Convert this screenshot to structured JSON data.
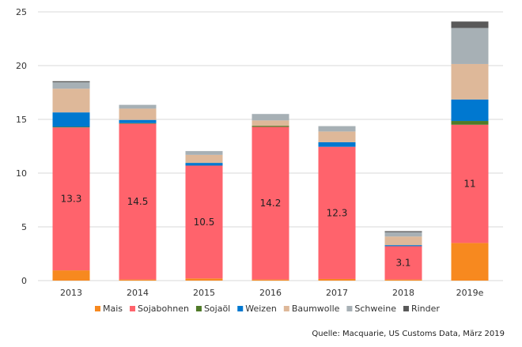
{
  "chart_data": {
    "type": "bar",
    "stacked": true,
    "title": "",
    "xlabel": "",
    "ylabel": "",
    "ylim": [
      0,
      25
    ],
    "yticks": [
      0,
      5,
      10,
      15,
      20,
      25
    ],
    "grid": true,
    "legend_position": "bottom",
    "categories": [
      "2013",
      "2014",
      "2015",
      "2016",
      "2017",
      "2018",
      "2019e"
    ],
    "series": [
      {
        "name": "Mais",
        "color": "#F7891F",
        "values": [
          0.95,
          0.1,
          0.2,
          0.1,
          0.15,
          0.1,
          3.5
        ]
      },
      {
        "name": "Sojabohnen",
        "color": "#FF636C",
        "values": [
          13.3,
          14.5,
          10.5,
          14.2,
          12.3,
          3.1,
          11
        ],
        "labels": [
          "13.3",
          "14.5",
          "10.5",
          "14.2",
          "12.3",
          "3.1",
          "11"
        ]
      },
      {
        "name": "Sojaöl",
        "color": "#4F7A28",
        "values": [
          0.05,
          0.05,
          0,
          0.1,
          0,
          0,
          0.35
        ]
      },
      {
        "name": "Weizen",
        "color": "#0078D0",
        "values": [
          1.35,
          0.3,
          0.25,
          0,
          0.42,
          0.1,
          2.0
        ]
      },
      {
        "name": "Baumwolle",
        "color": "#DEB899",
        "values": [
          2.2,
          1.05,
          0.75,
          0.5,
          1.0,
          0.8,
          3.3
        ]
      },
      {
        "name": "Schweine",
        "color": "#A7B0B5",
        "values": [
          0.6,
          0.35,
          0.35,
          0.6,
          0.5,
          0.4,
          3.35
        ]
      },
      {
        "name": "Rinder",
        "color": "#595959",
        "values": [
          0.1,
          0,
          0,
          0,
          0,
          0.1,
          0.6
        ]
      }
    ]
  },
  "source": "Quelle: Macquarie, US Customs Data, März 2019"
}
